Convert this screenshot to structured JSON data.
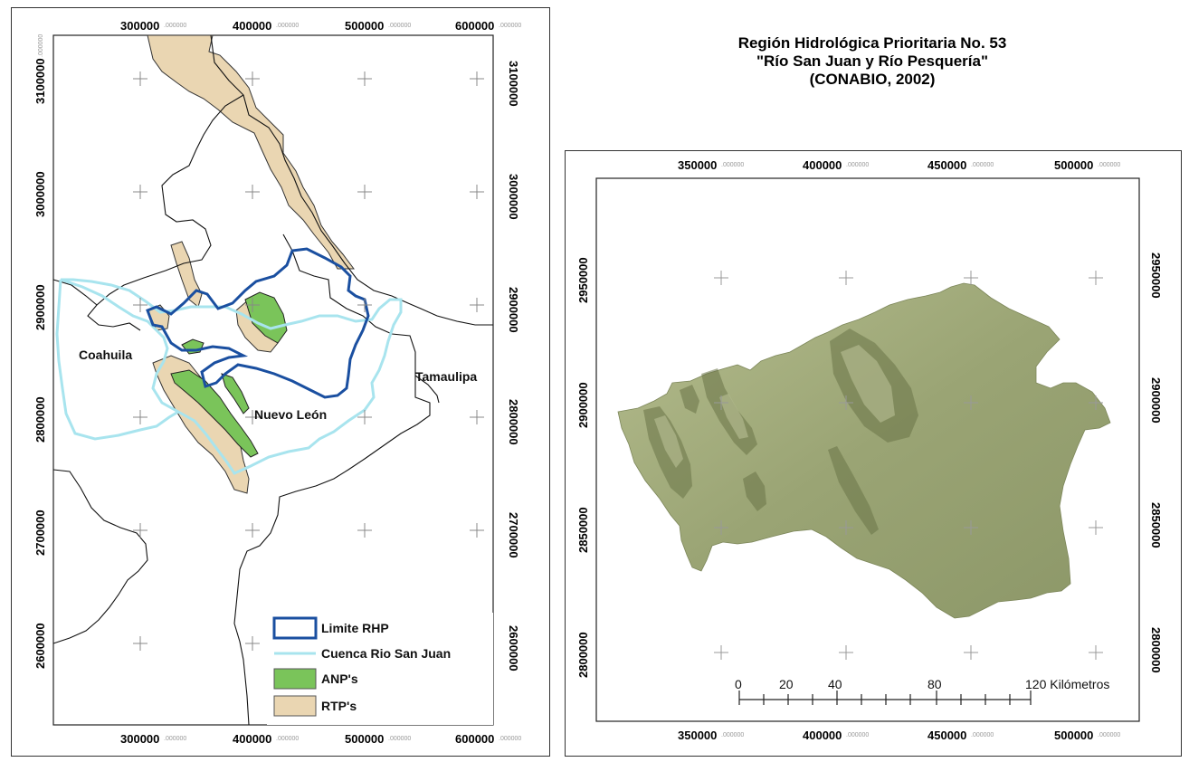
{
  "left_map": {
    "x_ticks": [
      "300000",
      "400000",
      "500000",
      "600000"
    ],
    "y_ticks": [
      "3100000",
      "3000000",
      "2900000",
      "2800000",
      "2700000",
      "2600000"
    ],
    "tick_suffix": ".000000",
    "state_labels": [
      "Coahuila",
      "Nuevo León",
      "Tamaulipa"
    ],
    "legend": [
      {
        "label": "Limite RHP",
        "color": "#1a4fa0",
        "kind": "outline"
      },
      {
        "label": "Cuenca Rio San Juan",
        "color": "#a8e4ee",
        "kind": "line"
      },
      {
        "label": "ANP's",
        "color": "#7ac45a",
        "kind": "fill"
      },
      {
        "label": "RTP's",
        "color": "#ead6b2",
        "kind": "fill"
      }
    ]
  },
  "title": {
    "line1": "Región Hidrológica Prioritaria No. 53",
    "line2": "\"Río San Juan y Río Pesquería\"",
    "line3": "(CONABIO, 2002)"
  },
  "right_map": {
    "x_ticks": [
      "350000",
      "400000",
      "450000",
      "500000"
    ],
    "y_ticks": [
      "2950000",
      "2900000",
      "2850000",
      "2800000"
    ],
    "tick_suffix": ".000000",
    "terrain_color": "#9aa474",
    "scale_bar": {
      "labels": [
        "0",
        "20",
        "40",
        "80",
        "120 Kilómetros"
      ]
    }
  }
}
